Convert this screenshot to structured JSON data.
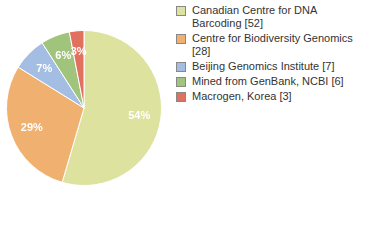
{
  "chart_data": {
    "type": "pie",
    "categories": [
      "Canadian Centre for DNA Barcoding [52]",
      "Centre for Biodiversity Genomics [28]",
      "Beijing Genomics Institute [7]",
      "Mined from GenBank, NCBI [6]",
      "Macrogen, Korea [3]"
    ],
    "values": [
      54,
      29,
      7,
      6,
      3
    ],
    "value_labels": [
      "54%",
      "29%",
      "7%",
      "6%",
      "3%"
    ],
    "colors": [
      "#dde39f",
      "#f0b070",
      "#a3bde3",
      "#a0c47c",
      "#e2705e"
    ],
    "data_labels": true,
    "legend": "right"
  }
}
